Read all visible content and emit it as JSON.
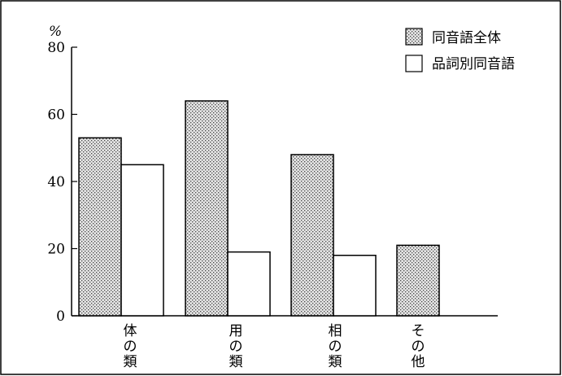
{
  "chart_data": {
    "type": "bar",
    "categories": [
      "体の類",
      "用の類",
      "相の類",
      "その他"
    ],
    "series": [
      {
        "name": "同音語全体",
        "values": [
          53,
          64,
          48,
          21
        ],
        "pattern": "dotted"
      },
      {
        "name": "品詞別同音語",
        "values": [
          45,
          19,
          18,
          0
        ],
        "pattern": "white"
      }
    ],
    "yunit": "%",
    "ylim": [
      0,
      80
    ],
    "yticks": [
      0,
      20,
      40,
      60,
      80
    ],
    "grid": false,
    "legend_position": "top-right",
    "colors": {
      "stroke": "#000000",
      "fill_dotted_bg": "#e6e6e6",
      "fill_white": "#ffffff"
    }
  }
}
